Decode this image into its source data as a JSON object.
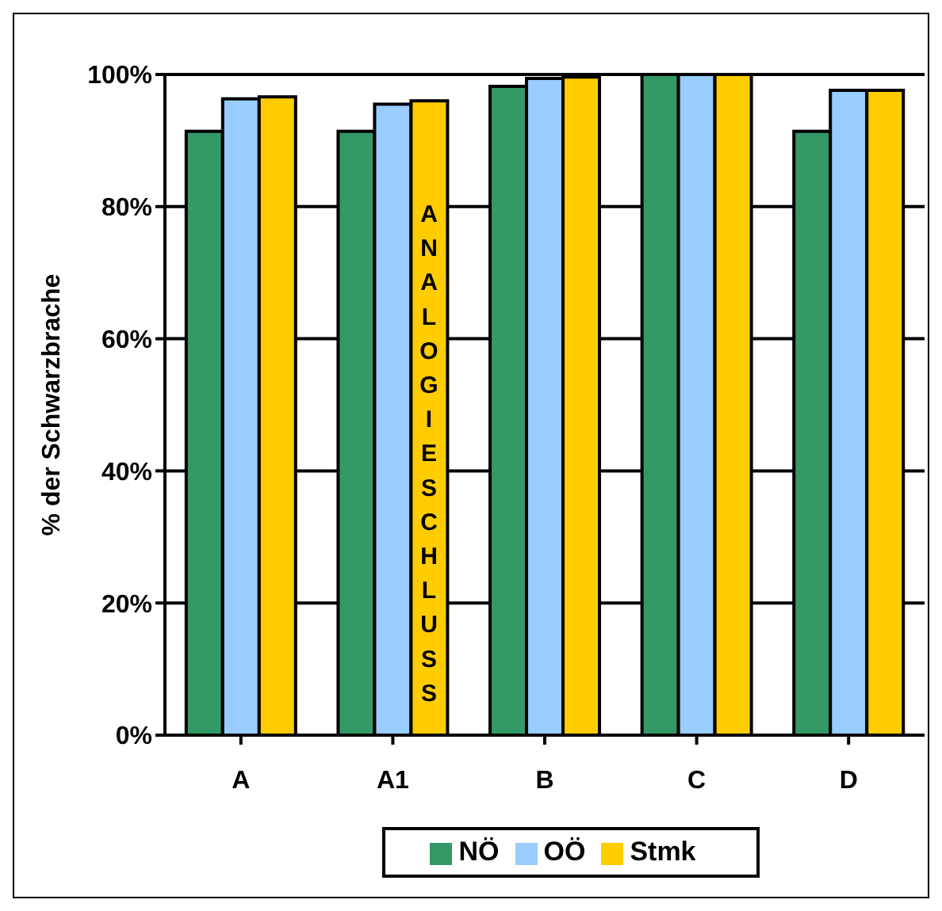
{
  "chart_data": {
    "type": "bar",
    "ylabel": "% der Schwarzbrache",
    "categories": [
      "A",
      "A1",
      "B",
      "C",
      "D"
    ],
    "series": [
      {
        "name": "NÖ",
        "color": "#339966",
        "values": [
          91.4,
          91.4,
          98.2,
          100,
          91.4
        ]
      },
      {
        "name": "OÖ",
        "color": "#99ccff",
        "values": [
          96.3,
          95.5,
          99.4,
          100,
          97.6
        ]
      },
      {
        "name": "Stmk",
        "color": "#ffcc00",
        "values": [
          96.6,
          96.0,
          99.6,
          100,
          97.6
        ]
      }
    ],
    "ylim": [
      0,
      100
    ],
    "yticks": [
      {
        "value": 0,
        "label": "0%"
      },
      {
        "value": 20,
        "label": "20%"
      },
      {
        "value": 40,
        "label": "40%"
      },
      {
        "value": 60,
        "label": "60%"
      },
      {
        "value": 80,
        "label": "80%"
      },
      {
        "value": 100,
        "label": "100%"
      }
    ],
    "grid": "y",
    "legend": "bottom",
    "annotations": [
      "ANALOGIESCHLUSS"
    ]
  }
}
